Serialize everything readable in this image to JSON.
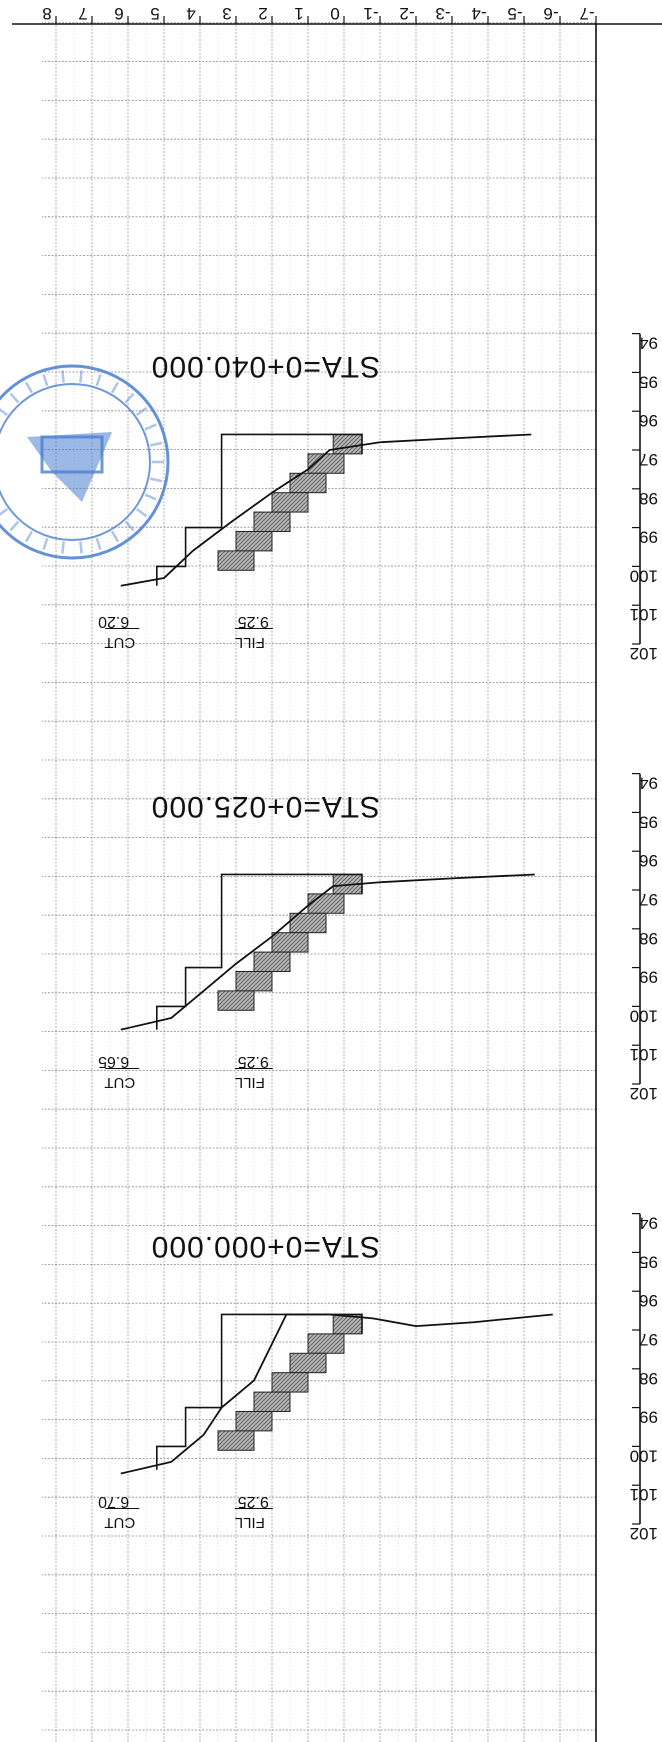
{
  "sheet": {
    "orientation": "rotated 180 degrees",
    "offset_axis_labels": [
      "-7",
      "-6",
      "-5",
      "-4",
      "-3",
      "-2",
      "-1",
      "0",
      "1",
      "2",
      "3",
      "4",
      "5",
      "6",
      "7",
      "8"
    ],
    "elevation_labels": [
      "102",
      "101",
      "100",
      "99",
      "98",
      "97",
      "96",
      "95",
      "94"
    ],
    "hatch_color": "#7a7a7a",
    "stamp_color": "#4a7fd0"
  },
  "sections": [
    {
      "label": "STA=0+000.000",
      "cut_label": "CUT",
      "cut_value": "6.70",
      "fill_label": "FILL",
      "fill_value": "9.25",
      "ground": [
        [
          6.2,
          100.7
        ],
        [
          4.8,
          100.4
        ],
        [
          3.9,
          99.7
        ],
        [
          3.4,
          99.0
        ],
        [
          2.5,
          98.3
        ],
        [
          1.6,
          96.6
        ],
        [
          0.4,
          96.6
        ],
        [
          -0.8,
          96.7
        ],
        [
          -2.0,
          96.9
        ],
        [
          -3.6,
          96.8
        ],
        [
          -5.8,
          96.6
        ]
      ],
      "design": [
        [
          5.2,
          100.6
        ],
        [
          5.2,
          100.0
        ],
        [
          4.4,
          100.0
        ],
        [
          4.4,
          99.0
        ],
        [
          3.4,
          99.0
        ],
        [
          3.4,
          98.0
        ],
        [
          3.4,
          96.6
        ],
        [
          -0.5,
          96.6
        ],
        [
          -0.5,
          97.1
        ]
      ],
      "fill_steps": [
        [
          -0.5,
          0.3,
          96.6,
          97.1
        ],
        [
          0.0,
          1.0,
          97.1,
          97.6
        ],
        [
          0.5,
          1.5,
          97.6,
          98.1
        ],
        [
          1.0,
          2.0,
          98.1,
          98.6
        ],
        [
          1.5,
          2.5,
          98.6,
          99.1
        ],
        [
          2.0,
          3.0,
          99.1,
          99.6
        ],
        [
          2.5,
          3.5,
          99.6,
          100.1
        ]
      ]
    },
    {
      "label": "STA=0+025.000",
      "cut_label": "CUT",
      "cut_value": "6.65",
      "fill_label": "FILL",
      "fill_value": "9.25",
      "ground": [
        [
          6.2,
          100.6
        ],
        [
          4.8,
          100.3
        ],
        [
          3.9,
          99.6
        ],
        [
          3.0,
          98.9
        ],
        [
          2.0,
          98.2
        ],
        [
          1.0,
          97.4
        ],
        [
          0.3,
          96.9
        ],
        [
          -1.0,
          96.8
        ],
        [
          -3.0,
          96.7
        ],
        [
          -5.3,
          96.6
        ]
      ],
      "design": [
        [
          5.2,
          100.6
        ],
        [
          5.2,
          100.0
        ],
        [
          4.4,
          100.0
        ],
        [
          4.4,
          99.0
        ],
        [
          3.4,
          99.0
        ],
        [
          3.4,
          98.0
        ],
        [
          3.4,
          96.6
        ],
        [
          -0.5,
          96.6
        ],
        [
          -0.5,
          97.1
        ]
      ],
      "fill_steps": [
        [
          -0.5,
          0.3,
          96.6,
          97.1
        ],
        [
          0.0,
          1.0,
          97.1,
          97.6
        ],
        [
          0.5,
          1.5,
          97.6,
          98.1
        ],
        [
          1.0,
          2.0,
          98.1,
          98.6
        ],
        [
          1.5,
          2.5,
          98.6,
          99.1
        ],
        [
          2.0,
          3.0,
          99.1,
          99.6
        ],
        [
          2.5,
          3.5,
          99.6,
          100.1
        ]
      ]
    },
    {
      "label": "STA=0+040.000",
      "cut_label": "CUT",
      "cut_value": "6.20",
      "fill_label": "FILL",
      "fill_value": "9.25",
      "ground": [
        [
          6.2,
          100.5
        ],
        [
          5.0,
          100.3
        ],
        [
          4.2,
          99.6
        ],
        [
          3.2,
          98.9
        ],
        [
          2.0,
          98.1
        ],
        [
          1.0,
          97.5
        ],
        [
          0.4,
          97.0
        ],
        [
          -1.0,
          96.8
        ],
        [
          -3.0,
          96.7
        ],
        [
          -5.2,
          96.6
        ]
      ],
      "design": [
        [
          5.2,
          100.5
        ],
        [
          5.2,
          100.0
        ],
        [
          4.4,
          100.0
        ],
        [
          4.4,
          99.0
        ],
        [
          3.4,
          99.0
        ],
        [
          3.4,
          98.0
        ],
        [
          3.4,
          96.6
        ],
        [
          -0.5,
          96.6
        ],
        [
          -0.5,
          97.1
        ]
      ],
      "fill_steps": [
        [
          -0.5,
          0.3,
          96.6,
          97.1
        ],
        [
          0.0,
          1.0,
          97.1,
          97.6
        ],
        [
          0.5,
          1.5,
          97.6,
          98.1
        ],
        [
          1.0,
          2.0,
          98.1,
          98.6
        ],
        [
          1.5,
          2.5,
          98.6,
          99.1
        ],
        [
          2.0,
          3.0,
          99.1,
          99.6
        ],
        [
          2.5,
          3.5,
          99.6,
          100.1
        ]
      ]
    }
  ]
}
